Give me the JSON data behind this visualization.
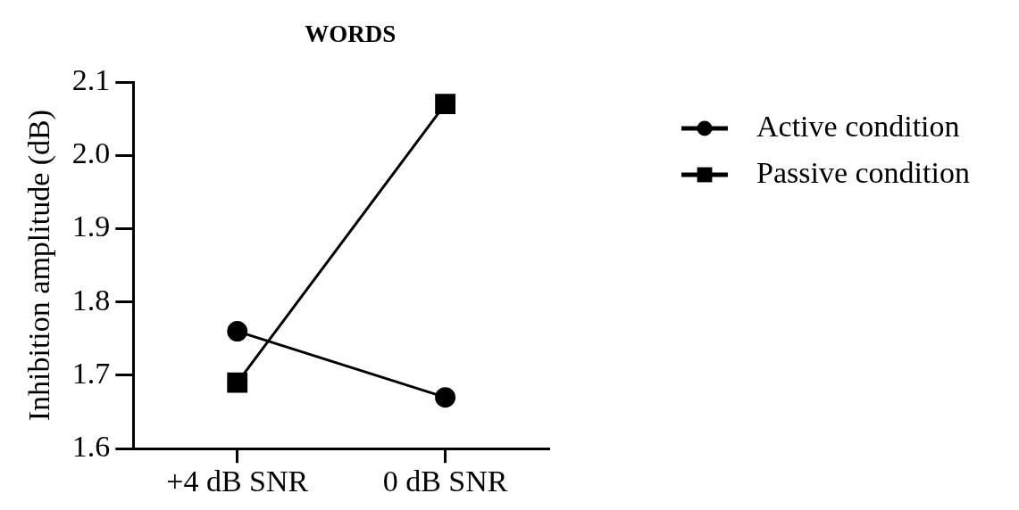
{
  "chart_data": {
    "type": "line",
    "title": "WORDS",
    "ylabel": "Inhibition amplitude (dB)",
    "categories": [
      "+4 dB SNR",
      "0 dB SNR"
    ],
    "series": [
      {
        "name": "Active condition",
        "color": "#000000",
        "marker": "circle",
        "values": [
          1.76,
          1.67
        ]
      },
      {
        "name": "Passive condition",
        "color": "#000000",
        "marker": "square",
        "values": [
          1.69,
          2.07
        ]
      }
    ],
    "ylim": [
      1.6,
      2.1
    ],
    "yticks": [
      1.6,
      1.7,
      1.8,
      1.9,
      {
        "value": 2.0,
        "label": "2.0"
      },
      2.1
    ],
    "grid": false,
    "legend": "right",
    "line_style": "solid"
  }
}
